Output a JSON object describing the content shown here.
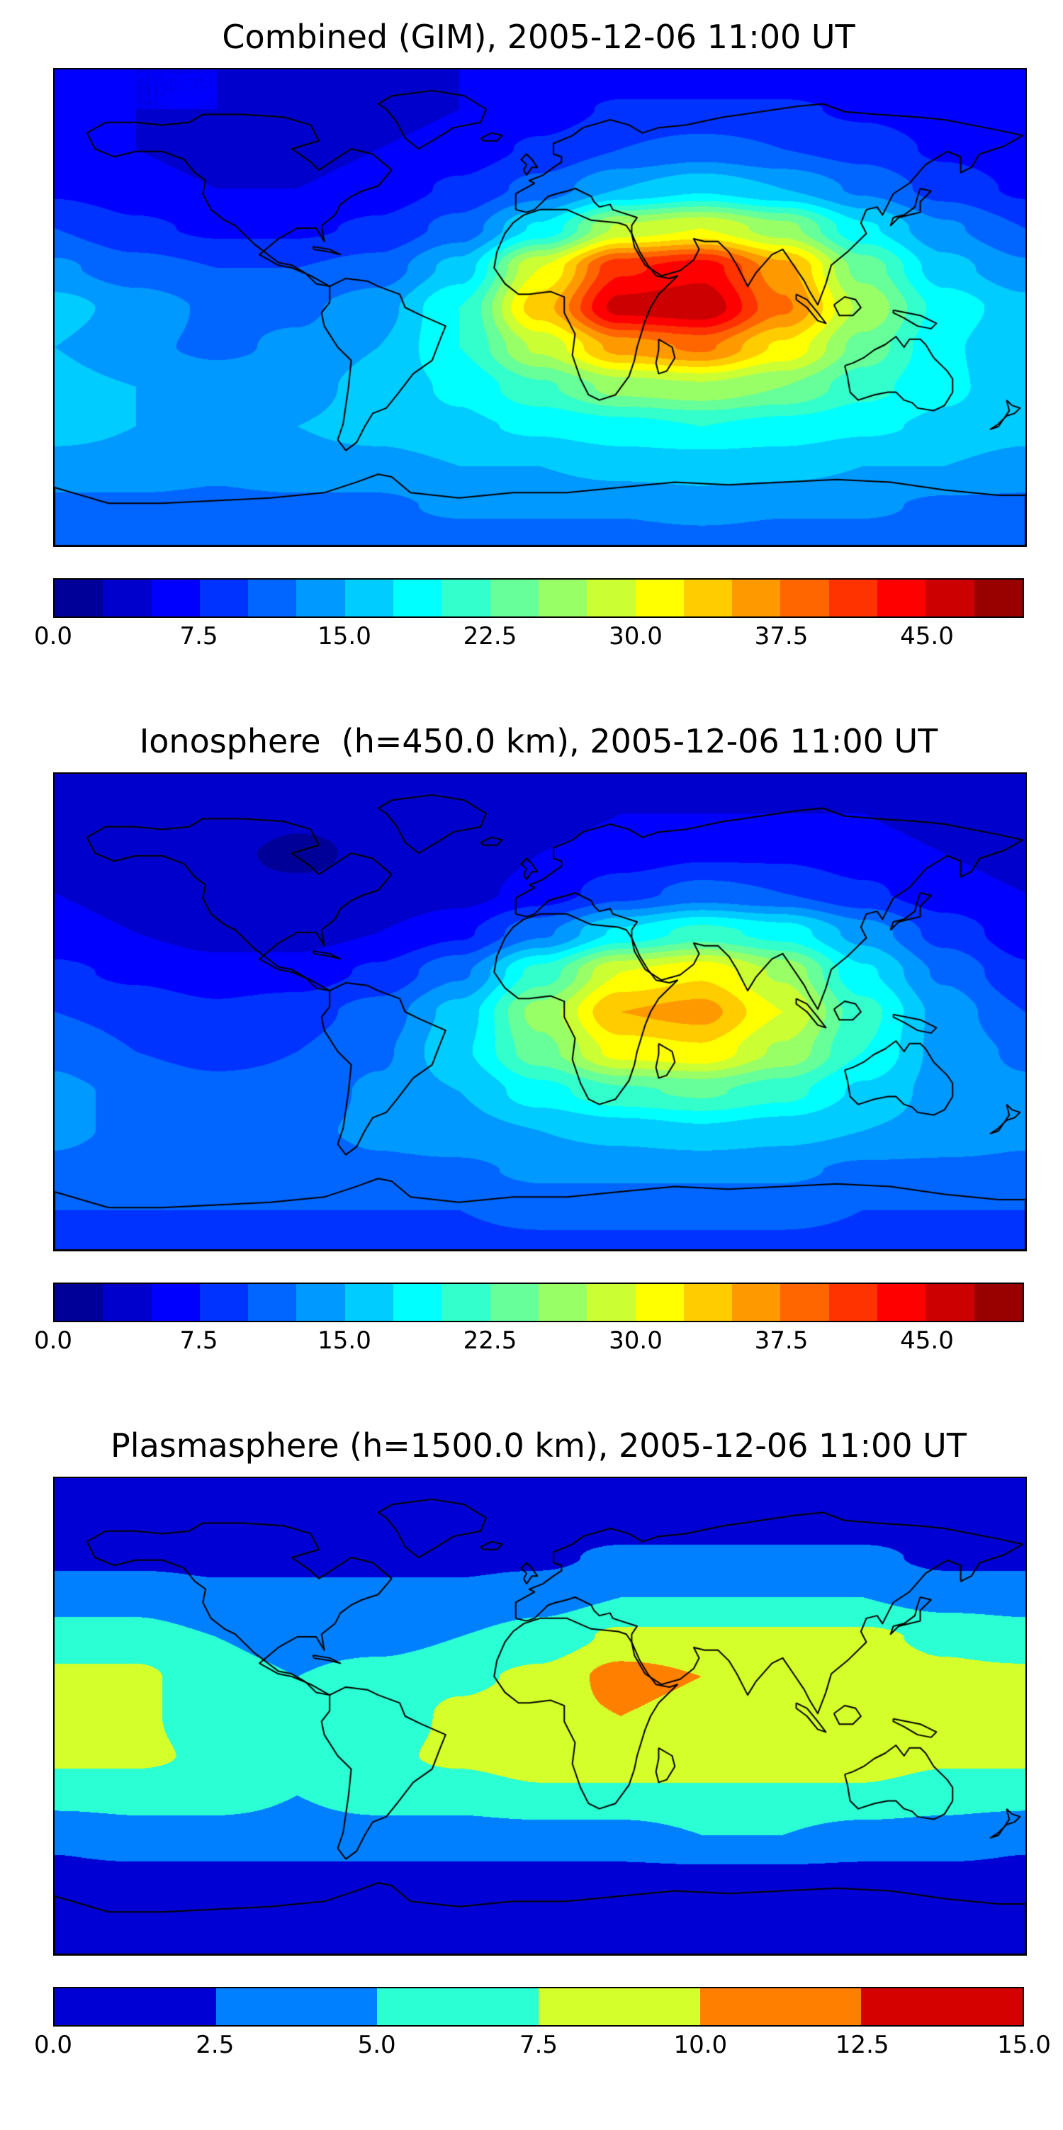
{
  "figure": {
    "background": "#ffffff",
    "coastline_color": "#000000",
    "panel_count": 3
  },
  "chart_data": [
    {
      "type": "heatmap",
      "subtype": "filled-contour-map",
      "title": "Combined (GIM), 2005-12-06 11:00 UT",
      "projection": "equirectangular",
      "overlay": "world-coastlines",
      "colormap": "jet",
      "x_lon": [
        -180,
        -150,
        -120,
        -90,
        -60,
        -30,
        0,
        30,
        60,
        90,
        120,
        150,
        180
      ],
      "y_lat": [
        90,
        75,
        60,
        45,
        30,
        15,
        0,
        -15,
        -30,
        -45,
        -60,
        -75,
        -90
      ],
      "values": [
        [
          5,
          5,
          5,
          5,
          5,
          5,
          5,
          5,
          5,
          5,
          5,
          5,
          5
        ],
        [
          6,
          5,
          5,
          4,
          4,
          5,
          6,
          8,
          8,
          8,
          7,
          6,
          6
        ],
        [
          6,
          5,
          4,
          4,
          5,
          6,
          8,
          10,
          11,
          10,
          9,
          7,
          6
        ],
        [
          7,
          6,
          5,
          5,
          6,
          8,
          11,
          15,
          17,
          15,
          12,
          9,
          7
        ],
        [
          10,
          8,
          7,
          7,
          8,
          11,
          18,
          28,
          30,
          26,
          18,
          13,
          10
        ],
        [
          13,
          11,
          10,
          10,
          11,
          16,
          30,
          42,
          44,
          36,
          24,
          16,
          13
        ],
        [
          16,
          14,
          12,
          12,
          14,
          20,
          34,
          46,
          47,
          38,
          27,
          19,
          16
        ],
        [
          15,
          13,
          12,
          13,
          15,
          20,
          28,
          36,
          38,
          32,
          24,
          18,
          15
        ],
        [
          16,
          15,
          14,
          14,
          16,
          18,
          22,
          26,
          27,
          25,
          21,
          18,
          16
        ],
        [
          16,
          15,
          15,
          15,
          16,
          17,
          18,
          19,
          20,
          19,
          18,
          17,
          16
        ],
        [
          14,
          14,
          13,
          14,
          14,
          15,
          15,
          16,
          16,
          16,
          15,
          15,
          14
        ],
        [
          12,
          12,
          12,
          12,
          12,
          13,
          13,
          13,
          14,
          13,
          13,
          12,
          12
        ],
        [
          11,
          11,
          11,
          11,
          11,
          11,
          11,
          11,
          11,
          11,
          11,
          11,
          11
        ]
      ],
      "colorbar": {
        "min": 0,
        "max": 50,
        "segment_step": 2.5,
        "tick_values": [
          0,
          7.5,
          15,
          22.5,
          30,
          37.5,
          45
        ],
        "tick_labels": [
          "0.0",
          "7.5",
          "15.0",
          "22.5",
          "30.0",
          "37.5",
          "45.0"
        ]
      }
    },
    {
      "type": "heatmap",
      "subtype": "filled-contour-map",
      "title": "Ionosphere  (h=450.0 km), 2005-12-06 11:00 UT",
      "projection": "equirectangular",
      "overlay": "world-coastlines",
      "colormap": "jet",
      "x_lon": [
        -180,
        -150,
        -120,
        -90,
        -60,
        -30,
        0,
        30,
        60,
        90,
        120,
        150,
        180
      ],
      "y_lat": [
        90,
        75,
        60,
        45,
        30,
        15,
        0,
        -15,
        -30,
        -45,
        -60,
        -75,
        -90
      ],
      "values": [
        [
          4,
          4,
          4,
          4,
          4,
          4,
          4,
          4,
          4,
          4,
          4,
          4,
          4
        ],
        [
          4,
          4,
          4,
          3,
          3,
          4,
          4,
          5,
          5,
          5,
          5,
          4,
          4
        ],
        [
          4,
          3,
          3,
          2,
          3,
          3,
          5,
          6,
          7,
          7,
          6,
          5,
          4
        ],
        [
          5,
          4,
          3,
          3,
          3,
          4,
          6,
          9,
          11,
          10,
          8,
          6,
          5
        ],
        [
          6,
          5,
          4,
          4,
          5,
          7,
          12,
          18,
          21,
          19,
          14,
          9,
          6
        ],
        [
          8,
          7,
          6,
          6,
          8,
          12,
          21,
          30,
          32,
          27,
          18,
          12,
          8
        ],
        [
          10,
          9,
          8,
          9,
          11,
          16,
          26,
          35,
          36,
          30,
          21,
          14,
          10
        ],
        [
          12,
          10,
          9,
          10,
          12,
          17,
          24,
          31,
          32,
          27,
          20,
          14,
          12
        ],
        [
          13,
          12,
          11,
          11,
          13,
          15,
          19,
          22,
          23,
          21,
          17,
          14,
          13
        ],
        [
          13,
          12,
          12,
          12,
          13,
          14,
          15,
          16,
          17,
          16,
          15,
          14,
          13
        ],
        [
          12,
          11,
          11,
          11,
          12,
          12,
          13,
          13,
          13,
          13,
          12,
          12,
          12
        ],
        [
          10,
          10,
          10,
          10,
          10,
          10,
          11,
          11,
          11,
          11,
          10,
          10,
          10
        ],
        [
          9,
          9,
          9,
          9,
          9,
          9,
          9,
          9,
          9,
          9,
          9,
          9,
          9
        ]
      ],
      "colorbar": {
        "min": 0,
        "max": 50,
        "segment_step": 2.5,
        "tick_values": [
          0,
          7.5,
          15,
          22.5,
          30,
          37.5,
          45
        ],
        "tick_labels": [
          "0.0",
          "7.5",
          "15.0",
          "22.5",
          "30.0",
          "37.5",
          "45.0"
        ]
      }
    },
    {
      "type": "heatmap",
      "subtype": "filled-contour-map",
      "title": "Plasmasphere (h=1500.0 km), 2005-12-06 11:00 UT",
      "projection": "equirectangular",
      "overlay": "world-coastlines",
      "colormap": "jet",
      "x_lon": [
        -180,
        -150,
        -120,
        -90,
        -60,
        -30,
        0,
        30,
        60,
        90,
        120,
        150,
        180
      ],
      "y_lat": [
        90,
        75,
        60,
        45,
        30,
        15,
        0,
        -15,
        -30,
        -45,
        -60,
        -75,
        -90
      ],
      "values": [
        [
          1,
          1,
          1,
          1,
          1,
          1,
          1,
          1,
          1,
          1,
          1,
          1,
          1
        ],
        [
          1,
          1,
          1,
          1,
          1,
          1,
          1,
          1,
          1,
          1,
          1,
          1,
          1
        ],
        [
          2,
          2,
          2,
          2,
          2,
          2,
          2,
          3,
          3,
          3,
          3,
          2,
          2
        ],
        [
          4,
          4,
          3,
          3,
          3,
          3,
          4,
          5,
          5,
          5,
          5,
          4,
          4
        ],
        [
          6,
          6,
          5,
          4,
          4,
          5,
          6,
          8,
          8,
          8,
          8,
          7,
          6
        ],
        [
          8,
          8,
          6,
          5,
          6,
          7,
          8,
          11,
          10,
          9,
          9,
          8,
          8
        ],
        [
          9,
          8,
          6,
          5,
          6,
          8,
          9,
          10,
          9,
          9,
          9,
          9,
          9
        ],
        [
          8,
          8,
          7,
          6,
          7,
          8,
          9,
          9,
          9,
          9,
          9,
          8,
          8
        ],
        [
          6,
          6,
          6,
          5,
          6,
          6,
          7,
          7,
          7,
          7,
          7,
          6,
          6
        ],
        [
          3,
          4,
          4,
          4,
          4,
          4,
          4,
          4,
          5,
          5,
          4,
          4,
          3
        ],
        [
          2,
          2,
          2,
          2,
          2,
          2,
          2,
          2,
          2,
          2,
          2,
          2,
          2
        ],
        [
          1,
          1,
          1,
          1,
          1,
          1,
          1,
          1,
          1,
          1,
          1,
          1,
          1
        ],
        [
          1,
          1,
          1,
          1,
          1,
          1,
          1,
          1,
          1,
          1,
          1,
          1,
          1
        ]
      ],
      "colorbar": {
        "min": 0,
        "max": 15,
        "segment_step": 2.5,
        "tick_values": [
          0,
          2.5,
          5,
          7.5,
          10,
          12.5,
          15
        ],
        "tick_labels": [
          "0.0",
          "2.5",
          "5.0",
          "7.5",
          "10.0",
          "12.5",
          "15.0"
        ]
      }
    }
  ]
}
